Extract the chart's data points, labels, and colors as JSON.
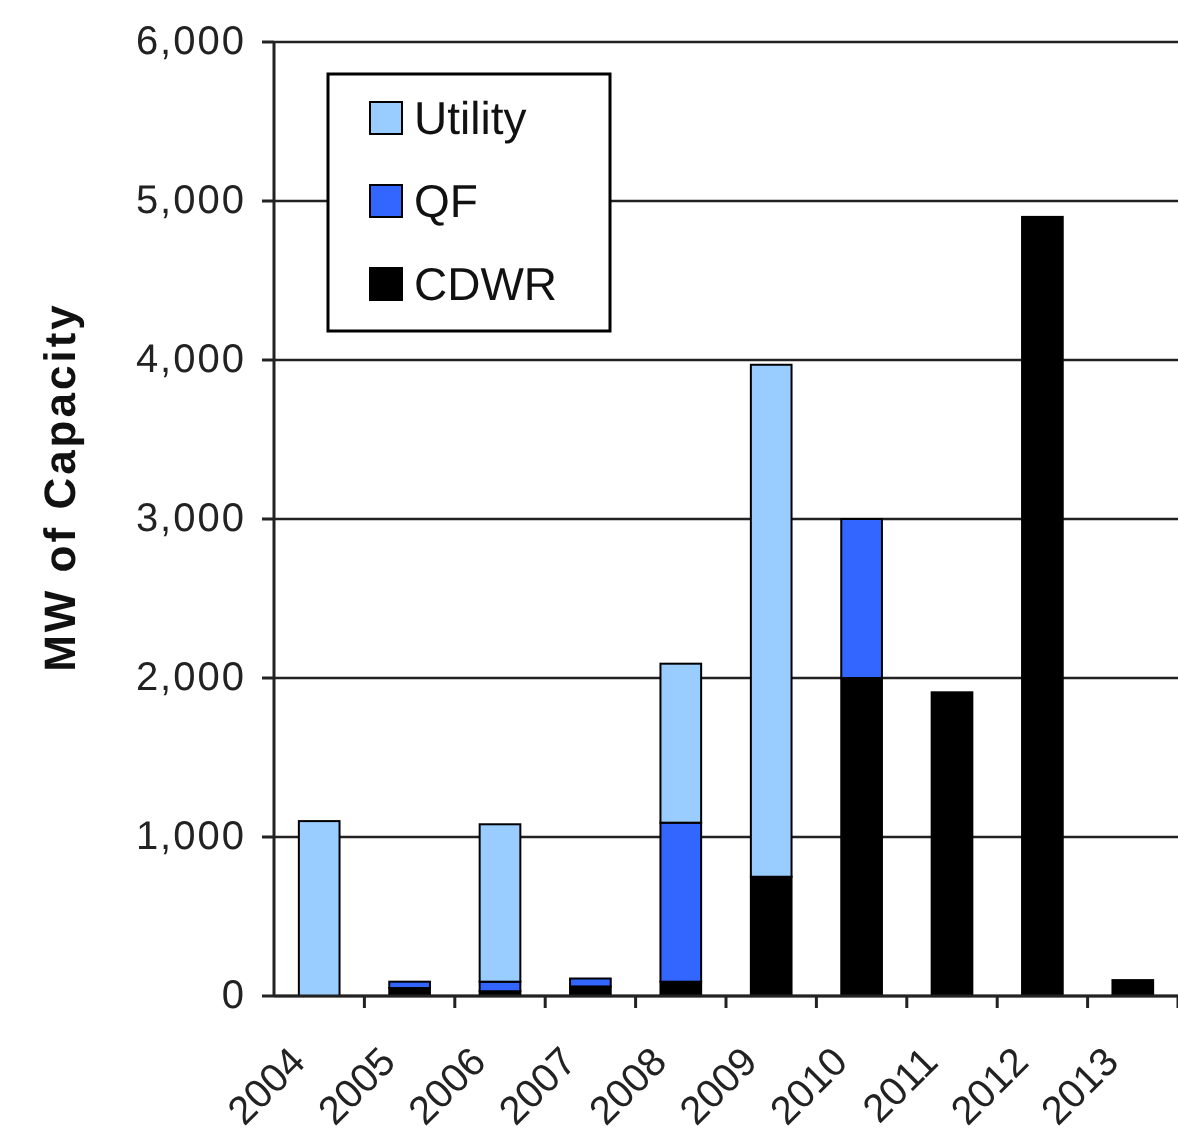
{
  "chart_data": {
    "type": "bar",
    "ylabel": "MW of Capacity",
    "categories": [
      "2004",
      "2005",
      "2006",
      "2007",
      "2008",
      "2009",
      "2010",
      "2011",
      "2012",
      "2013"
    ],
    "stacked": true,
    "series": [
      {
        "name": "CDWR",
        "color": "#000000",
        "values": [
          null,
          50,
          30,
          60,
          90,
          750,
          2000,
          1910,
          4900,
          100
        ]
      },
      {
        "name": "QF",
        "color": "#3366ff",
        "values": [
          null,
          40,
          60,
          50,
          1000,
          null,
          1000,
          null,
          null,
          null
        ]
      },
      {
        "name": "Utility",
        "color": "#99ccff",
        "values": [
          1100,
          null,
          990,
          null,
          1000,
          3220,
          null,
          null,
          null,
          null
        ]
      }
    ],
    "ylim": [
      0,
      6000
    ],
    "yticks": [
      0,
      {
        "value": 1000,
        "label": "1,000"
      },
      {
        "value": 2000,
        "label": "2,000"
      },
      {
        "value": 3000,
        "label": "3,000"
      },
      {
        "value": 4000,
        "label": "4,000"
      },
      {
        "value": 5000,
        "label": "5,000"
      },
      {
        "value": 6000,
        "label": "6,000"
      }
    ],
    "grid": "y",
    "legend": "top left"
  }
}
